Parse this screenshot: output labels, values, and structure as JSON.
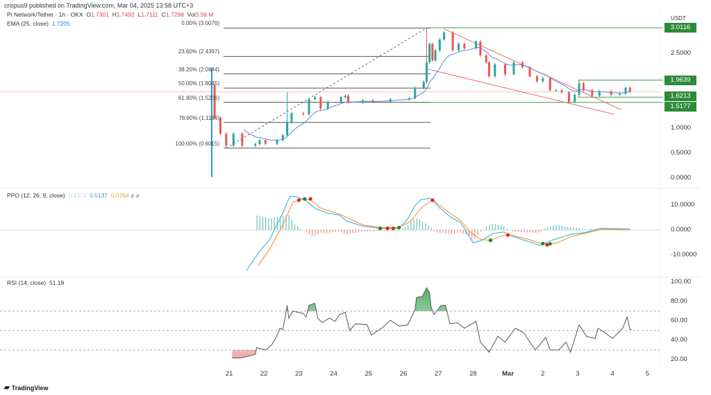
{
  "header": {
    "published": "crispus9 published on TradingView.com, Mar 04, 2025 13:58 UTC+3",
    "symbol": "Pi Network/Tether · 1h · OKX",
    "o_label": "O",
    "o": "1.7301",
    "h_label": "H",
    "h": "1.7492",
    "l_label": "L",
    "l": "1.7111",
    "c_label": "C",
    "c": "1.7298",
    "vol_label": "Vol",
    "vol": "3.58 M",
    "ema_label": "EMA (25, close)",
    "ema_value": "1.7205"
  },
  "price_axis": {
    "currency": "USDT",
    "ticks": [
      {
        "v": 2.5,
        "label": "2.5000"
      },
      {
        "v": 1.0,
        "label": "1.0000"
      },
      {
        "v": 0.5,
        "label": "0.5000"
      },
      {
        "v": 0,
        "label": "0.0000"
      }
    ],
    "tags": [
      {
        "v": 3.0116,
        "label": "3.0116"
      },
      {
        "v": 1.9639,
        "label": "1.9639"
      },
      {
        "v": 1.6213,
        "label": "1.6213"
      },
      {
        "v": 1.5177,
        "label": "1.5177"
      }
    ]
  },
  "colors": {
    "up": "#26a69a",
    "down": "#ef5350",
    "ema": "#5b8bd6",
    "fib": "#555555",
    "support": "#3c9a48",
    "wedge": "#e86b6b",
    "ppo": "#4fb3e0",
    "signal": "#f59a3c",
    "rsi": "#555555"
  },
  "fib": [
    {
      "label": "0.00% (3.0076)",
      "v": 3.0076
    },
    {
      "label": "23.60% (2.4397)",
      "v": 2.4397
    },
    {
      "label": "38.20% (2.0884)",
      "v": 2.0884
    },
    {
      "label": "50.00% (1.8045)",
      "v": 1.8045
    },
    {
      "label": "61.80% (1.5206)",
      "v": 1.5206
    },
    {
      "label": "78.60% (1.1164)",
      "v": 1.1164
    },
    {
      "label": "100.00% (0.6015)",
      "v": 0.6015
    }
  ],
  "chart_data": [
    {
      "type": "candlestick",
      "title": "Pi Network/Tether · 1h · OKX",
      "ylabel": "USDT",
      "ylim": [
        -0.05,
        3.3
      ],
      "close": [
        [
          "2025-02-20T12:00",
          1.86
        ],
        [
          "2025-02-20T14:00",
          1.21
        ],
        [
          "2025-02-20T18:00",
          0.89
        ],
        [
          "2025-02-20T22:00",
          0.65
        ],
        [
          "2025-02-21T03:00",
          0.89
        ],
        [
          "2025-02-21T09:00",
          0.65
        ],
        [
          "2025-02-21T18:00",
          0.68
        ],
        [
          "2025-02-21T21:00",
          0.76
        ],
        [
          "2025-02-22T01:00",
          0.69
        ],
        [
          "2025-02-22T09:00",
          0.76
        ],
        [
          "2025-02-22T13:00",
          0.86
        ],
        [
          "2025-02-22T16:00",
          1.11
        ],
        [
          "2025-02-22T19:00",
          1.3
        ],
        [
          "2025-02-23T03:00",
          1.28
        ],
        [
          "2025-02-23T07:00",
          1.58
        ],
        [
          "2025-02-23T11:00",
          1.62
        ],
        [
          "2025-02-23T15:00",
          1.39
        ],
        [
          "2025-02-23T20:00",
          1.53
        ],
        [
          "2025-02-24T05:00",
          1.62
        ],
        [
          "2025-02-24T08:00",
          1.65
        ],
        [
          "2025-02-24T10:00",
          1.51
        ],
        [
          "2025-02-24T20:00",
          1.56
        ],
        [
          "2025-02-25T03:00",
          1.53
        ],
        [
          "2025-02-25T15:00",
          1.58
        ],
        [
          "2025-02-26T04:00",
          1.6
        ],
        [
          "2025-02-26T08:00",
          1.81
        ],
        [
          "2025-02-26T14:00",
          1.93
        ],
        [
          "2025-02-26T16:00",
          2.32
        ],
        [
          "2025-02-26T18:00",
          2.69
        ],
        [
          "2025-02-26T20:00",
          2.36
        ],
        [
          "2025-02-26T22:00",
          2.56
        ],
        [
          "2025-02-27T01:00",
          2.78
        ],
        [
          "2025-02-27T04:00",
          2.92
        ],
        [
          "2025-02-27T10:00",
          2.56
        ],
        [
          "2025-02-27T14:00",
          2.69
        ],
        [
          "2025-02-27T18:00",
          2.6
        ],
        [
          "2025-02-28T02:00",
          2.74
        ],
        [
          "2025-02-28T05:00",
          2.46
        ],
        [
          "2025-02-28T09:00",
          2.32
        ],
        [
          "2025-02-28T11:00",
          2.04
        ],
        [
          "2025-02-28T15:00",
          2.28
        ],
        [
          "2025-02-28T22:00",
          2.08
        ],
        [
          "2025-03-01T04:00",
          2.32
        ],
        [
          "2025-03-01T10:00",
          2.22
        ],
        [
          "2025-03-01T15:00",
          2.04
        ],
        [
          "2025-03-01T20:00",
          1.94
        ],
        [
          "2025-03-02T00:00",
          2.0
        ],
        [
          "2025-03-02T05:00",
          1.76
        ],
        [
          "2025-03-02T09:00",
          1.76
        ],
        [
          "2025-03-02T13:00",
          1.72
        ],
        [
          "2025-03-02T18:00",
          1.53
        ],
        [
          "2025-03-02T22:00",
          1.67
        ],
        [
          "2025-03-03T01:00",
          1.9
        ],
        [
          "2025-03-03T04:00",
          1.76
        ],
        [
          "2025-03-03T10:00",
          1.65
        ],
        [
          "2025-03-03T15:00",
          1.74
        ],
        [
          "2025-03-03T23:00",
          1.67
        ],
        [
          "2025-03-04T05:00",
          1.69
        ],
        [
          "2025-03-04T09:00",
          1.81
        ],
        [
          "2025-03-04T12:00",
          1.73
        ]
      ],
      "wicks": [
        [
          "2025-02-20T12:00",
          2.2,
          0.02
        ],
        [
          "2025-02-22T16:00",
          1.72,
          0.86
        ],
        [
          "2025-02-26T16:00",
          3.0076,
          1.9
        ],
        [
          "2025-03-03T01:00",
          1.96,
          1.62
        ]
      ],
      "current_price": 1.7298,
      "fib_anchor": [
        [
          "2025-02-20T22:00",
          0.6015
        ],
        [
          "2025-02-26T16:00",
          3.0076
        ]
      ],
      "support_lines": [
        {
          "v": 3.0116,
          "from": "2025-02-26T16:00"
        },
        {
          "v": 1.9639,
          "from": "2025-03-03T00:00"
        },
        {
          "v": 1.6213,
          "from": "2025-03-03T00:00"
        },
        {
          "v": 1.5177,
          "from": "2025-02-26T04:00"
        }
      ],
      "wedge": [
        [
          [
            "2025-02-27T04:00",
            2.99
          ],
          [
            "2025-03-04T06:00",
            1.37
          ]
        ],
        [
          [
            "2025-02-26T16:00",
            2.19
          ],
          [
            "2025-03-04T01:00",
            1.28
          ]
        ]
      ]
    },
    {
      "type": "line",
      "title": "PPO (12, 26, 9, close)",
      "values": {
        "hist": "0.4373",
        "ppo": "0.5137",
        "signal": "0.0764"
      },
      "ylim": [
        -18,
        16
      ],
      "ticks": [
        {
          "v": 10,
          "label": "10.0000"
        },
        {
          "v": 0,
          "label": "0.0000"
        },
        {
          "v": -10,
          "label": "-10.0000"
        }
      ],
      "ppo": [
        [
          "2025-02-21T12:00",
          -16.2
        ],
        [
          "2025-02-21T21:00",
          -8.5
        ],
        [
          "2025-02-22T04:00",
          -3.7
        ],
        [
          "2025-02-22T13:00",
          6.9
        ],
        [
          "2025-02-22T18:00",
          13.7
        ],
        [
          "2025-02-22T23:00",
          13.2
        ],
        [
          "2025-02-23T05:00",
          11.7
        ],
        [
          "2025-02-23T11:00",
          8.8
        ],
        [
          "2025-02-23T19:00",
          6.9
        ],
        [
          "2025-02-24T04:00",
          6.0
        ],
        [
          "2025-02-24T09:00",
          3.6
        ],
        [
          "2025-02-24T20:00",
          1.6
        ],
        [
          "2025-02-25T08:00",
          0.7
        ],
        [
          "2025-02-25T21:00",
          0.7
        ],
        [
          "2025-02-26T03:00",
          4.5
        ],
        [
          "2025-02-26T08:00",
          9.8
        ],
        [
          "2025-02-26T12:00",
          12.2
        ],
        [
          "2025-02-26T19:00",
          12.7
        ],
        [
          "2025-02-27T01:00",
          8.8
        ],
        [
          "2025-02-27T09:00",
          5.0
        ],
        [
          "2025-02-27T15:00",
          3.1
        ],
        [
          "2025-02-27T19:00",
          -0.3
        ],
        [
          "2025-02-28T00:00",
          -5.1
        ],
        [
          "2025-02-28T06:00",
          -4.1
        ],
        [
          "2025-02-28T14:00",
          -1.3
        ],
        [
          "2025-02-28T21:00",
          -0.8
        ],
        [
          "2025-03-01T04:00",
          -2.7
        ],
        [
          "2025-03-01T14:00",
          -4.6
        ],
        [
          "2025-03-01T22:00",
          -6.1
        ],
        [
          "2025-03-02T06:00",
          -4.1
        ],
        [
          "2025-03-02T19:00",
          -1.7
        ],
        [
          "2025-03-03T05:00",
          -1.0
        ],
        [
          "2025-03-03T16:00",
          0.7
        ],
        [
          "2025-03-04T12:00",
          0.51
        ]
      ],
      "signal": [
        [
          "2025-02-21T20:00",
          -14.2
        ],
        [
          "2025-02-22T04:00",
          -7.5
        ],
        [
          "2025-02-22T13:00",
          2.1
        ],
        [
          "2025-02-22T20:00",
          11.2
        ],
        [
          "2025-02-23T01:00",
          12.2
        ],
        [
          "2025-02-23T08:00",
          12.2
        ],
        [
          "2025-02-23T15:00",
          8.8
        ],
        [
          "2025-02-24T04:00",
          6.4
        ],
        [
          "2025-02-24T20:00",
          2.1
        ],
        [
          "2025-02-25T08:00",
          1.0
        ],
        [
          "2025-02-25T21:00",
          1.0
        ],
        [
          "2025-02-26T05:00",
          3.6
        ],
        [
          "2025-02-26T13:00",
          9.3
        ],
        [
          "2025-02-26T20:00",
          12.2
        ],
        [
          "2025-02-27T04:00",
          8.4
        ],
        [
          "2025-02-27T15:00",
          4.0
        ],
        [
          "2025-02-27T22:00",
          -0.8
        ],
        [
          "2025-02-28T05:00",
          -3.7
        ],
        [
          "2025-02-28T11:00",
          -4.1
        ],
        [
          "2025-02-28T18:00",
          -2.7
        ],
        [
          "2025-03-01T00:00",
          -1.7
        ],
        [
          "2025-03-01T14:00",
          -3.7
        ],
        [
          "2025-03-02T01:00",
          -5.8
        ],
        [
          "2025-03-02T10:00",
          -5.1
        ],
        [
          "2025-03-02T19:00",
          -2.7
        ],
        [
          "2025-03-03T05:00",
          -1.3
        ],
        [
          "2025-03-03T16:00",
          0.2
        ],
        [
          "2025-03-04T12:00",
          0.08
        ]
      ],
      "cross_dots": [
        [
          "2025-02-23T00:00",
          12.0,
          "red"
        ],
        [
          "2025-02-23T04:00",
          12.5,
          "green"
        ],
        [
          "2025-02-23T08:00",
          12.5,
          "red"
        ],
        [
          "2025-02-25T08:00",
          0.7,
          "green"
        ],
        [
          "2025-02-25T13:00",
          0.7,
          "red"
        ],
        [
          "2025-02-25T17:00",
          0.7,
          "red"
        ],
        [
          "2025-02-25T21:00",
          1.0,
          "green"
        ],
        [
          "2025-02-26T20:00",
          12.0,
          "red"
        ],
        [
          "2025-02-28T12:00",
          -4.1,
          "green"
        ],
        [
          "2025-03-01T00:00",
          -2.0,
          "red"
        ],
        [
          "2025-03-02T00:00",
          -5.4,
          "green"
        ],
        [
          "2025-03-02T03:00",
          -5.9,
          "red"
        ],
        [
          "2025-03-02T05:00",
          -5.5,
          "green"
        ]
      ]
    },
    {
      "type": "line",
      "title": "RSI (14, close)",
      "value": "51.19",
      "ylim": [
        10,
        105
      ],
      "bands": [
        70,
        50,
        30
      ],
      "ticks": [
        {
          "v": 100,
          "label": "100.00"
        },
        {
          "v": 80,
          "label": "80.00"
        },
        {
          "v": 60,
          "label": "60.00"
        },
        {
          "v": 40,
          "label": "40.00"
        },
        {
          "v": 20,
          "label": "20.00"
        }
      ],
      "rsi": [
        [
          "2025-02-21T02:00",
          21.8
        ],
        [
          "2025-02-21T08:00",
          21.8
        ],
        [
          "2025-02-21T18:00",
          25.3
        ],
        [
          "2025-02-21T19:00",
          32.4
        ],
        [
          "2025-02-22T01:00",
          30
        ],
        [
          "2025-02-22T05:00",
          34.7
        ],
        [
          "2025-02-22T08:00",
          41.8
        ],
        [
          "2025-02-22T11:00",
          52.4
        ],
        [
          "2025-02-22T13:00",
          51
        ],
        [
          "2025-02-22T16:00",
          75.9
        ],
        [
          "2025-02-22T17:00",
          62.9
        ],
        [
          "2025-02-22T20:00",
          70
        ],
        [
          "2025-02-23T03:00",
          67.6
        ],
        [
          "2025-02-23T05:00",
          64
        ],
        [
          "2025-02-23T07:00",
          75.9
        ],
        [
          "2025-02-23T11:00",
          78.2
        ],
        [
          "2025-02-23T13:00",
          62.9
        ],
        [
          "2025-02-23T16:00",
          58.2
        ],
        [
          "2025-02-23T21:00",
          62.9
        ],
        [
          "2025-02-24T01:00",
          59.4
        ],
        [
          "2025-02-24T04:00",
          66.5
        ],
        [
          "2025-02-24T08:00",
          68.8
        ],
        [
          "2025-02-24T11:00",
          50
        ],
        [
          "2025-02-24T15:00",
          57
        ],
        [
          "2025-02-24T23:00",
          55.9
        ],
        [
          "2025-02-25T02:00",
          45.3
        ],
        [
          "2025-02-25T10:00",
          53.5
        ],
        [
          "2025-02-25T15:00",
          60.6
        ],
        [
          "2025-02-25T21:00",
          54.7
        ],
        [
          "2025-02-26T03:00",
          55.9
        ],
        [
          "2025-02-26T08:00",
          71.2
        ],
        [
          "2025-02-26T09:00",
          84.1
        ],
        [
          "2025-02-26T13:00",
          85.3
        ],
        [
          "2025-02-26T16:00",
          94
        ],
        [
          "2025-02-26T18:00",
          88.8
        ],
        [
          "2025-02-26T19:00",
          74.7
        ],
        [
          "2025-02-26T21:00",
          66.5
        ],
        [
          "2025-02-27T02:00",
          75.9
        ],
        [
          "2025-02-27T05:00",
          75.9
        ],
        [
          "2025-02-27T08:00",
          57
        ],
        [
          "2025-02-27T13:00",
          58.2
        ],
        [
          "2025-02-27T18:00",
          52.4
        ],
        [
          "2025-02-28T02:00",
          59.4
        ],
        [
          "2025-02-28T05:00",
          38.2
        ],
        [
          "2025-02-28T11:00",
          27.6
        ],
        [
          "2025-02-28T17:00",
          44.1
        ],
        [
          "2025-02-28T22:00",
          38.2
        ],
        [
          "2025-03-01T05:00",
          52.4
        ],
        [
          "2025-03-01T11:00",
          47.6
        ],
        [
          "2025-03-01T16:00",
          35.9
        ],
        [
          "2025-03-01T19:00",
          30
        ],
        [
          "2025-03-02T02:00",
          42.9
        ],
        [
          "2025-03-02T05:00",
          30
        ],
        [
          "2025-03-02T11:00",
          30
        ],
        [
          "2025-03-02T16:00",
          38.2
        ],
        [
          "2025-03-02T19:00",
          27.6
        ],
        [
          "2025-03-03T01:00",
          55.9
        ],
        [
          "2025-03-03T06:00",
          44.1
        ],
        [
          "2025-03-03T12:00",
          41.8
        ],
        [
          "2025-03-03T14:00",
          52.4
        ],
        [
          "2025-03-03T20:00",
          46.5
        ],
        [
          "2025-03-04T00:00",
          41.8
        ],
        [
          "2025-03-04T07:00",
          52.4
        ],
        [
          "2025-03-04T10:00",
          64.1
        ],
        [
          "2025-03-04T12:00",
          51.2
        ],
        [
          "2025-03-04T13:00",
          51.19
        ]
      ]
    }
  ],
  "time_axis": [
    "21",
    "22",
    "23",
    "24",
    "25",
    "26",
    "27",
    "28",
    "Mar",
    "2",
    "3",
    "4",
    "5"
  ],
  "footer": {
    "brand": "TradingView"
  }
}
